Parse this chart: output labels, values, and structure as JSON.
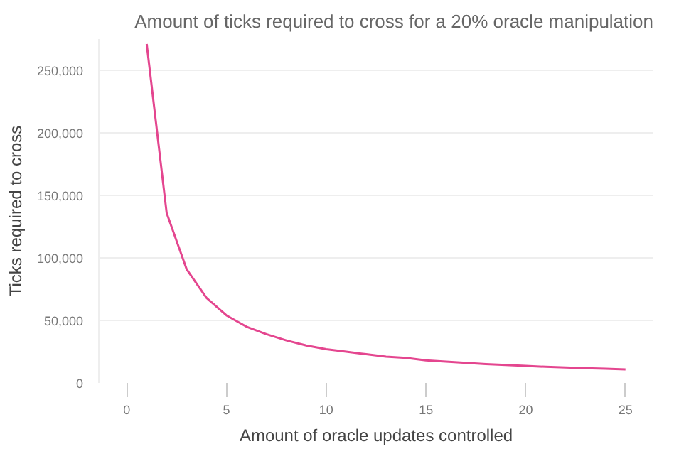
{
  "chart_data": {
    "type": "line",
    "title": "Amount of ticks required to cross for a 20% oracle manipulation",
    "xlabel": "Amount of oracle updates controlled",
    "ylabel": "Ticks required to cross",
    "x": [
      1,
      2,
      3,
      4,
      5,
      6,
      7,
      8,
      9,
      10,
      11,
      12,
      13,
      14,
      15,
      16,
      17,
      18,
      19,
      20,
      21,
      22,
      23,
      24,
      25
    ],
    "series": [
      {
        "color": "#e4468f",
        "values": [
          271000,
          136000,
          91000,
          68000,
          54000,
          45000,
          39000,
          34000,
          30000,
          27000,
          25000,
          23000,
          21000,
          20000,
          18000,
          17000,
          16000,
          15000,
          14300,
          13600,
          12900,
          12300,
          11800,
          11300,
          10800
        ]
      }
    ],
    "xlim": [
      -1.4,
      26.4
    ],
    "ylim": [
      0,
      275000
    ],
    "xticks": [
      0,
      5,
      10,
      15,
      20,
      25
    ],
    "yticks": [
      {
        "value": 0,
        "label": "0"
      },
      {
        "value": 50000,
        "label": "50,000"
      },
      {
        "value": 100000,
        "label": "100,000"
      },
      {
        "value": 150000,
        "label": "150,000"
      },
      {
        "value": 200000,
        "label": "200,000"
      },
      {
        "value": 250000,
        "label": "250,000"
      }
    ],
    "grid": "y",
    "marker": "none",
    "line_style": "solid"
  }
}
